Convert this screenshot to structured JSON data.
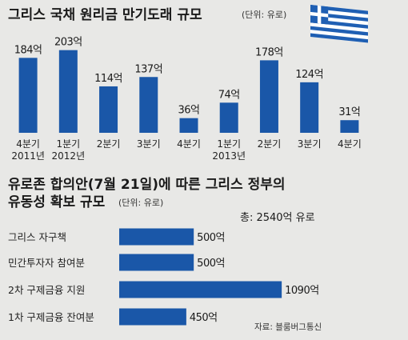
{
  "chart_data": [
    {
      "type": "bar",
      "title": "그리스 국채 원리금 만기도래 규모",
      "unit_note": "(단위: 유로)",
      "categories": [
        [
          "4분기",
          "2011년"
        ],
        [
          "1분기",
          "2012년"
        ],
        [
          "2분기",
          ""
        ],
        [
          "3분기",
          ""
        ],
        [
          "4분기",
          ""
        ],
        [
          "1분기",
          "2013년"
        ],
        [
          "2분기",
          ""
        ],
        [
          "3분기",
          ""
        ],
        [
          "4분기",
          ""
        ]
      ],
      "values": [
        184,
        203,
        114,
        137,
        36,
        74,
        178,
        124,
        31
      ],
      "value_labels": [
        "184억",
        "203억",
        "114억",
        "137억",
        "36억",
        "74억",
        "178억",
        "124억",
        "31억"
      ],
      "bar_color": "#1a57a8",
      "ylim": [
        0,
        220
      ],
      "grid": false,
      "decoration": "greek-flag-icon"
    },
    {
      "type": "bar",
      "orientation": "horizontal",
      "title_line1": "유로존 합의안(7월 21일)에 따른 그리스 정부의",
      "title_line2": "유동성 확보 규모",
      "unit_note": "(단위: 유로)",
      "total_label": "총: 2540억 유로",
      "categories": [
        "그리스 자구책",
        "민간투자자 참여분",
        "2차 구제금융 지원",
        "1차 구제금융 잔여분"
      ],
      "values": [
        500,
        500,
        1090,
        450
      ],
      "value_labels": [
        "500억",
        "500억",
        "1090억",
        "450억"
      ],
      "bar_color": "#1a57a8",
      "xlim": [
        0,
        1100
      ],
      "grid": false
    }
  ],
  "source": "자료: 블룸버그통신"
}
